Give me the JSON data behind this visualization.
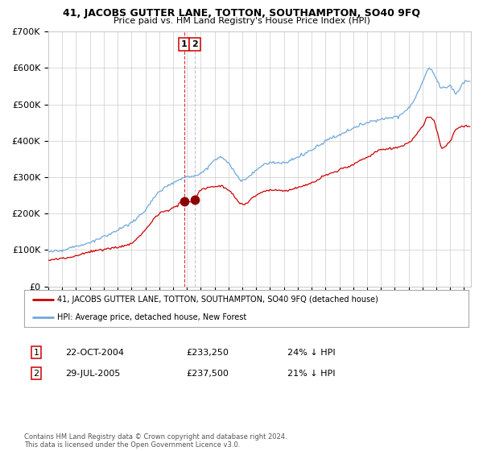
{
  "title": "41, JACOBS GUTTER LANE, TOTTON, SOUTHAMPTON, SO40 9FQ",
  "subtitle": "Price paid vs. HM Land Registry's House Price Index (HPI)",
  "ylim": [
    0,
    700000
  ],
  "yticks": [
    0,
    100000,
    200000,
    300000,
    400000,
    500000,
    600000,
    700000
  ],
  "ytick_labels": [
    "£0",
    "£100K",
    "£200K",
    "£300K",
    "£400K",
    "£500K",
    "£600K",
    "£700K"
  ],
  "sale1_date_label": "22-OCT-2004",
  "sale1_price": 233250,
  "sale1_pct": "24% ↓ HPI",
  "sale2_date_label": "29-JUL-2005",
  "sale2_price": 237500,
  "sale2_pct": "21% ↓ HPI",
  "legend_line1": "41, JACOBS GUTTER LANE, TOTTON, SOUTHAMPTON, SO40 9FQ (detached house)",
  "legend_line2": "HPI: Average price, detached house, New Forest",
  "footnote": "Contains HM Land Registry data © Crown copyright and database right 2024.\nThis data is licensed under the Open Government Licence v3.0.",
  "hpi_color": "#6fa8dc",
  "price_color": "#cc0000",
  "dot_color": "#8b0000",
  "vline1_color": "#cc0000",
  "vline2_color": "#aabbcc",
  "grid_color": "#cccccc",
  "bg_color": "#ffffff",
  "annotation_box_color": "#cc0000"
}
